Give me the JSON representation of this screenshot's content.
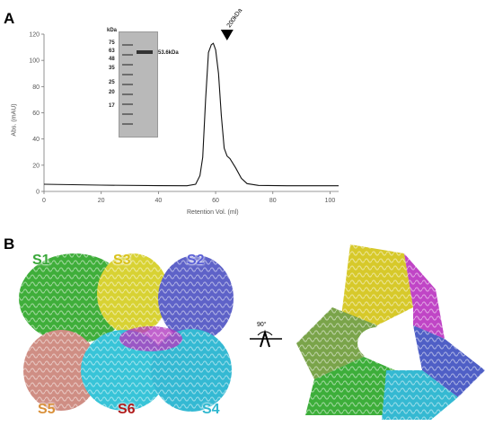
{
  "panels": {
    "a": "A",
    "b": "B"
  },
  "chart_data": {
    "type": "line",
    "title": "",
    "xlabel": "Retention Vol. (ml)",
    "ylabel": "Abs. (mAU)",
    "xlim": [
      0,
      103
    ],
    "ylim": [
      0,
      120
    ],
    "x_ticks": [
      "0",
      "20",
      "40",
      "60",
      "80",
      "100"
    ],
    "y_ticks": [
      "0",
      "20",
      "40",
      "60",
      "80",
      "100",
      "120"
    ],
    "series": [
      {
        "x": [
          0,
          20,
          40,
          50,
          53,
          54.5,
          55.5,
          56.5,
          57.5,
          58.5,
          59.2,
          60,
          61,
          62,
          63,
          64,
          65,
          67,
          69,
          71,
          75,
          85,
          103
        ],
        "y": [
          5.5,
          4.8,
          4.4,
          4.3,
          5.5,
          12,
          26,
          70,
          106,
          112,
          113,
          108,
          90,
          58,
          33,
          27,
          25,
          18,
          10,
          6,
          4.6,
          4.3,
          4.3
        ]
      }
    ],
    "annotations": [
      {
        "text": "200kDa",
        "x": 64,
        "marker": "triangle-down"
      }
    ],
    "grid": false
  },
  "gel": {
    "unit": "kDa",
    "ladder": [
      "75",
      "63",
      "48",
      "35",
      "25",
      "20",
      "17"
    ],
    "band_label": "53.6kDa"
  },
  "structure": {
    "subunits": [
      {
        "label": "S1",
        "color": "#3aa83a"
      },
      {
        "label": "S3",
        "color": "#d9c21a"
      },
      {
        "label": "S2",
        "color": "#5a5fd6"
      },
      {
        "label": "S5",
        "color": "#d9903a"
      },
      {
        "label": "S6",
        "color": "#b01a1a"
      },
      {
        "label": "S4",
        "color": "#2fb7cf"
      }
    ],
    "rotation": "90°"
  }
}
